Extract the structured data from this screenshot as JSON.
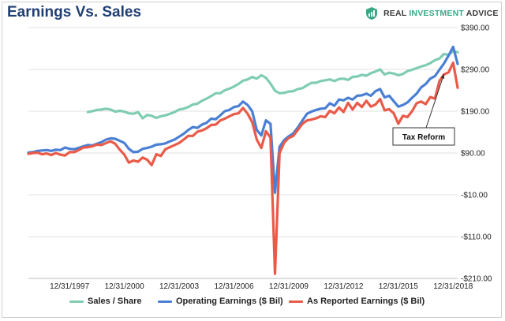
{
  "chart_data": {
    "type": "line",
    "title": "Earnings Vs. Sales",
    "brand": {
      "name": "REAL INVESTMENT ADVICE",
      "accent_word": "INVESTMENT",
      "logo_icon": "shield-chart-icon",
      "logo_color": "#3aa887"
    },
    "xlabel": "",
    "ylabel": "",
    "x_range": [
      "1995-09-30",
      "2019-03-31"
    ],
    "x_tick_labels": [
      "12/31/1997",
      "12/31/2000",
      "12/31/2003",
      "12/31/2006",
      "12/31/2009",
      "12/31/2012",
      "12/31/2015",
      "12/31/2018"
    ],
    "x_tick_values": [
      "1997-12-31",
      "2000-12-31",
      "2003-12-31",
      "2006-12-31",
      "2009-12-31",
      "2012-12-31",
      "2015-12-31",
      "2018-12-31"
    ],
    "y_tick_labels": [
      "$390.00",
      "$290.00",
      "$190.00",
      "$90.00",
      "-$10.00",
      "-$110.00",
      "-$210.00"
    ],
    "y_tick_values": [
      390,
      290,
      190,
      90,
      -10,
      -110,
      -210
    ],
    "ylim": [
      -210,
      390
    ],
    "y_axis_position": "right",
    "grid": true,
    "legend_position": "bottom",
    "series": [
      {
        "name": "Sales / Share",
        "color": "#7fcdb0",
        "points": [
          [
            "1998-12-31",
            188
          ],
          [
            "1999-03-31",
            190
          ],
          [
            "1999-06-30",
            193
          ],
          [
            "1999-09-30",
            194
          ],
          [
            "1999-12-31",
            196
          ],
          [
            "2000-03-31",
            194
          ],
          [
            "2000-06-30",
            189
          ],
          [
            "2000-09-30",
            191
          ],
          [
            "2000-12-31",
            189
          ],
          [
            "2001-03-31",
            185
          ],
          [
            "2001-06-30",
            184
          ],
          [
            "2001-09-30",
            188
          ],
          [
            "2001-12-31",
            173
          ],
          [
            "2002-03-31",
            181
          ],
          [
            "2002-06-30",
            179
          ],
          [
            "2002-09-30",
            174
          ],
          [
            "2002-12-31",
            178
          ],
          [
            "2003-03-31",
            180
          ],
          [
            "2003-06-30",
            184
          ],
          [
            "2003-09-30",
            188
          ],
          [
            "2003-12-31",
            194
          ],
          [
            "2004-03-31",
            196
          ],
          [
            "2004-06-30",
            200
          ],
          [
            "2004-09-30",
            206
          ],
          [
            "2004-12-31",
            208
          ],
          [
            "2005-03-31",
            215
          ],
          [
            "2005-06-30",
            220
          ],
          [
            "2005-09-30",
            226
          ],
          [
            "2005-12-31",
            233
          ],
          [
            "2006-03-31",
            233
          ],
          [
            "2006-06-30",
            240
          ],
          [
            "2006-09-30",
            244
          ],
          [
            "2006-12-31",
            249
          ],
          [
            "2007-03-31",
            255
          ],
          [
            "2007-06-30",
            263
          ],
          [
            "2007-09-30",
            266
          ],
          [
            "2007-12-31",
            272
          ],
          [
            "2008-03-31",
            268
          ],
          [
            "2008-06-30",
            276
          ],
          [
            "2008-09-30",
            270
          ],
          [
            "2008-12-31",
            256
          ],
          [
            "2009-03-31",
            239
          ],
          [
            "2009-06-30",
            233
          ],
          [
            "2009-09-30",
            234
          ],
          [
            "2009-12-31",
            237
          ],
          [
            "2010-03-31",
            238
          ],
          [
            "2010-06-30",
            243
          ],
          [
            "2010-09-30",
            245
          ],
          [
            "2010-12-31",
            252
          ],
          [
            "2011-03-31",
            258
          ],
          [
            "2011-06-30",
            258
          ],
          [
            "2011-09-30",
            262
          ],
          [
            "2011-12-31",
            264
          ],
          [
            "2012-03-31",
            266
          ],
          [
            "2012-06-30",
            262
          ],
          [
            "2012-09-30",
            267
          ],
          [
            "2012-12-31",
            268
          ],
          [
            "2013-03-31",
            265
          ],
          [
            "2013-06-30",
            272
          ],
          [
            "2013-09-30",
            273
          ],
          [
            "2013-12-31",
            277
          ],
          [
            "2014-03-31",
            275
          ],
          [
            "2014-06-30",
            281
          ],
          [
            "2014-09-30",
            285
          ],
          [
            "2014-12-31",
            290
          ],
          [
            "2015-03-31",
            278
          ],
          [
            "2015-06-30",
            282
          ],
          [
            "2015-09-30",
            280
          ],
          [
            "2015-12-31",
            276
          ],
          [
            "2016-03-31",
            279
          ],
          [
            "2016-06-30",
            286
          ],
          [
            "2016-09-30",
            289
          ],
          [
            "2016-12-31",
            293
          ],
          [
            "2017-03-31",
            297
          ],
          [
            "2017-06-30",
            300
          ],
          [
            "2017-09-30",
            305
          ],
          [
            "2017-12-31",
            312
          ],
          [
            "2018-03-31",
            316
          ],
          [
            "2018-06-30",
            327
          ],
          [
            "2018-09-30",
            325
          ],
          [
            "2018-12-31",
            334
          ],
          [
            "2019-03-31",
            331
          ]
        ]
      },
      {
        "name": "Operating Earnings ($ Bil)",
        "color": "#4a7fd4",
        "points": [
          [
            "1995-09-30",
            91
          ],
          [
            "1995-12-31",
            92
          ],
          [
            "1996-03-31",
            95
          ],
          [
            "1996-06-30",
            96
          ],
          [
            "1996-09-30",
            97
          ],
          [
            "1996-12-31",
            95
          ],
          [
            "1997-03-31",
            98
          ],
          [
            "1997-06-30",
            97
          ],
          [
            "1997-09-30",
            103
          ],
          [
            "1997-12-31",
            100
          ],
          [
            "1998-03-31",
            99
          ],
          [
            "1998-06-30",
            102
          ],
          [
            "1998-09-30",
            106
          ],
          [
            "1998-12-31",
            109
          ],
          [
            "1999-03-31",
            108
          ],
          [
            "1999-06-30",
            112
          ],
          [
            "1999-09-30",
            116
          ],
          [
            "1999-12-31",
            122
          ],
          [
            "2000-03-31",
            125
          ],
          [
            "2000-06-30",
            124
          ],
          [
            "2000-09-30",
            119
          ],
          [
            "2000-12-31",
            114
          ],
          [
            "2001-03-31",
            100
          ],
          [
            "2001-06-30",
            92
          ],
          [
            "2001-09-30",
            93
          ],
          [
            "2001-12-31",
            100
          ],
          [
            "2002-03-31",
            102
          ],
          [
            "2002-06-30",
            105
          ],
          [
            "2002-09-30",
            110
          ],
          [
            "2002-12-31",
            111
          ],
          [
            "2003-03-31",
            113
          ],
          [
            "2003-06-30",
            118
          ],
          [
            "2003-09-30",
            122
          ],
          [
            "2003-12-31",
            129
          ],
          [
            "2004-03-31",
            136
          ],
          [
            "2004-06-30",
            145
          ],
          [
            "2004-09-30",
            152
          ],
          [
            "2004-12-31",
            150
          ],
          [
            "2005-03-31",
            158
          ],
          [
            "2005-06-30",
            162
          ],
          [
            "2005-09-30",
            172
          ],
          [
            "2005-12-31",
            171
          ],
          [
            "2006-03-31",
            180
          ],
          [
            "2006-06-30",
            190
          ],
          [
            "2006-09-30",
            193
          ],
          [
            "2006-12-31",
            200
          ],
          [
            "2007-03-31",
            202
          ],
          [
            "2007-06-30",
            213
          ],
          [
            "2007-09-30",
            205
          ],
          [
            "2007-12-31",
            190
          ],
          [
            "2008-03-31",
            145
          ],
          [
            "2008-06-30",
            132
          ],
          [
            "2008-09-30",
            168
          ],
          [
            "2008-12-31",
            160
          ],
          [
            "2009-03-31",
            -5
          ],
          [
            "2009-06-30",
            105
          ],
          [
            "2009-09-30",
            121
          ],
          [
            "2009-12-31",
            130
          ],
          [
            "2010-03-31",
            137
          ],
          [
            "2010-06-30",
            151
          ],
          [
            "2010-09-30",
            168
          ],
          [
            "2010-12-31",
            184
          ],
          [
            "2011-03-31",
            189
          ],
          [
            "2011-06-30",
            193
          ],
          [
            "2011-09-30",
            196
          ],
          [
            "2011-12-31",
            197
          ],
          [
            "2012-03-31",
            209
          ],
          [
            "2012-06-30",
            203
          ],
          [
            "2012-09-30",
            218
          ],
          [
            "2012-12-31",
            216
          ],
          [
            "2013-03-31",
            222
          ],
          [
            "2013-06-30",
            218
          ],
          [
            "2013-09-30",
            227
          ],
          [
            "2013-12-31",
            228
          ],
          [
            "2014-03-31",
            232
          ],
          [
            "2014-06-30",
            227
          ],
          [
            "2014-09-30",
            238
          ],
          [
            "2014-12-31",
            243
          ],
          [
            "2015-03-31",
            223
          ],
          [
            "2015-06-30",
            227
          ],
          [
            "2015-09-30",
            214
          ],
          [
            "2015-12-31",
            201
          ],
          [
            "2016-03-31",
            205
          ],
          [
            "2016-06-30",
            211
          ],
          [
            "2016-09-30",
            222
          ],
          [
            "2016-12-31",
            232
          ],
          [
            "2017-03-31",
            247
          ],
          [
            "2017-06-30",
            255
          ],
          [
            "2017-09-30",
            268
          ],
          [
            "2017-12-31",
            274
          ],
          [
            "2018-03-31",
            289
          ],
          [
            "2018-06-30",
            304
          ],
          [
            "2018-09-30",
            323
          ],
          [
            "2018-12-31",
            344
          ],
          [
            "2019-03-31",
            303
          ]
        ]
      },
      {
        "name": "As Reported Earnings ($ Bil)",
        "color": "#ea5a48",
        "points": [
          [
            "1995-09-30",
            88
          ],
          [
            "1995-12-31",
            90
          ],
          [
            "1996-03-31",
            91
          ],
          [
            "1996-06-30",
            87
          ],
          [
            "1996-09-30",
            89
          ],
          [
            "1996-12-31",
            85
          ],
          [
            "1997-03-31",
            90
          ],
          [
            "1997-06-30",
            86
          ],
          [
            "1997-09-30",
            84
          ],
          [
            "1997-12-31",
            92
          ],
          [
            "1998-03-31",
            92
          ],
          [
            "1998-06-30",
            97
          ],
          [
            "1998-09-30",
            103
          ],
          [
            "1998-12-31",
            104
          ],
          [
            "1999-03-31",
            106
          ],
          [
            "1999-06-30",
            110
          ],
          [
            "1999-09-30",
            109
          ],
          [
            "1999-12-31",
            114
          ],
          [
            "2000-03-31",
            118
          ],
          [
            "2000-06-30",
            112
          ],
          [
            "2000-09-30",
            98
          ],
          [
            "2000-12-31",
            86
          ],
          [
            "2001-03-31",
            67
          ],
          [
            "2001-06-30",
            72
          ],
          [
            "2001-09-30",
            69
          ],
          [
            "2001-12-31",
            79
          ],
          [
            "2002-03-31",
            74
          ],
          [
            "2002-06-30",
            61
          ],
          [
            "2002-09-30",
            87
          ],
          [
            "2002-12-31",
            83
          ],
          [
            "2003-03-31",
            99
          ],
          [
            "2003-06-30",
            104
          ],
          [
            "2003-09-30",
            109
          ],
          [
            "2003-12-31",
            114
          ],
          [
            "2004-03-31",
            122
          ],
          [
            "2004-06-30",
            131
          ],
          [
            "2004-09-30",
            131
          ],
          [
            "2004-12-31",
            141
          ],
          [
            "2005-03-31",
            144
          ],
          [
            "2005-06-30",
            149
          ],
          [
            "2005-09-30",
            157
          ],
          [
            "2005-12-31",
            158
          ],
          [
            "2006-03-31",
            168
          ],
          [
            "2006-06-30",
            172
          ],
          [
            "2006-09-30",
            178
          ],
          [
            "2006-12-31",
            183
          ],
          [
            "2007-03-31",
            185
          ],
          [
            "2007-06-30",
            198
          ],
          [
            "2007-09-30",
            184
          ],
          [
            "2007-12-31",
            164
          ],
          [
            "2008-03-31",
            122
          ],
          [
            "2008-06-30",
            102
          ],
          [
            "2008-09-30",
            142
          ],
          [
            "2008-12-31",
            127
          ],
          [
            "2009-03-31",
            -199
          ],
          [
            "2009-06-30",
            90
          ],
          [
            "2009-09-30",
            115
          ],
          [
            "2009-12-31",
            126
          ],
          [
            "2010-03-31",
            131
          ],
          [
            "2010-06-30",
            145
          ],
          [
            "2010-09-30",
            160
          ],
          [
            "2010-12-31",
            168
          ],
          [
            "2011-03-31",
            170
          ],
          [
            "2011-06-30",
            173
          ],
          [
            "2011-09-30",
            178
          ],
          [
            "2011-12-31",
            176
          ],
          [
            "2012-03-31",
            191
          ],
          [
            "2012-06-30",
            185
          ],
          [
            "2012-09-30",
            199
          ],
          [
            "2012-12-31",
            188
          ],
          [
            "2013-03-31",
            210
          ],
          [
            "2013-06-30",
            194
          ],
          [
            "2013-09-30",
            210
          ],
          [
            "2013-12-31",
            200
          ],
          [
            "2014-03-31",
            215
          ],
          [
            "2014-06-30",
            201
          ],
          [
            "2014-09-30",
            206
          ],
          [
            "2014-12-31",
            219
          ],
          [
            "2015-03-31",
            192
          ],
          [
            "2015-06-30",
            195
          ],
          [
            "2015-09-30",
            185
          ],
          [
            "2015-12-31",
            160
          ],
          [
            "2016-03-31",
            179
          ],
          [
            "2016-06-30",
            176
          ],
          [
            "2016-09-30",
            190
          ],
          [
            "2016-12-31",
            209
          ],
          [
            "2017-03-31",
            213
          ],
          [
            "2017-06-30",
            207
          ],
          [
            "2017-09-30",
            224
          ],
          [
            "2017-12-31",
            220
          ],
          [
            "2018-03-31",
            262
          ],
          [
            "2018-06-30",
            278
          ],
          [
            "2018-09-30",
            283
          ],
          [
            "2018-12-31",
            306
          ],
          [
            "2019-03-31",
            246
          ]
        ]
      }
    ],
    "annotations": [
      {
        "text": "Tax Reform",
        "arrow_target": [
          "2018-06-30",
          290
        ]
      }
    ]
  }
}
